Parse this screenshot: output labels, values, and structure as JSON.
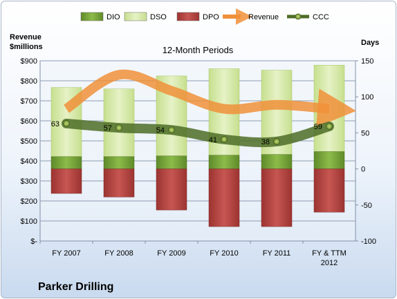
{
  "chart_data": {
    "type": "bar",
    "title": "12-Month Periods",
    "company": "Parker Drilling",
    "categories": [
      "FY 2007",
      "FY 2008",
      "FY 2009",
      "FY 2010",
      "FY 2011",
      "FY & TTM 2012"
    ],
    "left_axis": {
      "label_line1": "Revenue",
      "label_line2": "$millions",
      "ylim": [
        0,
        900
      ],
      "ticks": [
        0,
        100,
        200,
        300,
        400,
        500,
        600,
        700,
        800,
        900
      ],
      "tick_labels": [
        "$-",
        "$100",
        "$200",
        "$300",
        "$400",
        "$500",
        "$600",
        "$700",
        "$800",
        "$900"
      ]
    },
    "right_axis": {
      "label": "Days",
      "ylim": [
        -100,
        150
      ],
      "ticks": [
        -100,
        -50,
        0,
        50,
        100,
        150
      ],
      "tick_labels": [
        "-100",
        "-50",
        "0",
        "50",
        "100",
        "150"
      ]
    },
    "grid": true,
    "legend_position": "top",
    "series": [
      {
        "name": "DIO",
        "axis": "right",
        "kind": "stacked-bar",
        "color": "#76a33a",
        "values": [
          17,
          17,
          18,
          19,
          20,
          24
        ]
      },
      {
        "name": "DSO",
        "axis": "right",
        "kind": "stacked-bar",
        "color": "#d4e8a3",
        "values": [
          96,
          94,
          111,
          120,
          117,
          120
        ]
      },
      {
        "name": "DPO",
        "axis": "right",
        "kind": "stacked-bar",
        "color": "#b54743",
        "values": [
          -34,
          -39,
          -57,
          -80,
          -80,
          -60
        ]
      },
      {
        "name": "Revenue",
        "axis": "left",
        "kind": "arrow-line",
        "color": "#f0913a",
        "values": [
          660,
          830,
          750,
          660,
          680,
          660
        ]
      },
      {
        "name": "CCC",
        "axis": "right",
        "kind": "line-markers",
        "color": "#4e6d27",
        "values": [
          63,
          57,
          54,
          41,
          38,
          59
        ]
      }
    ],
    "data_labels": [
      "63",
      "57",
      "54",
      "41",
      "38",
      "59"
    ]
  }
}
